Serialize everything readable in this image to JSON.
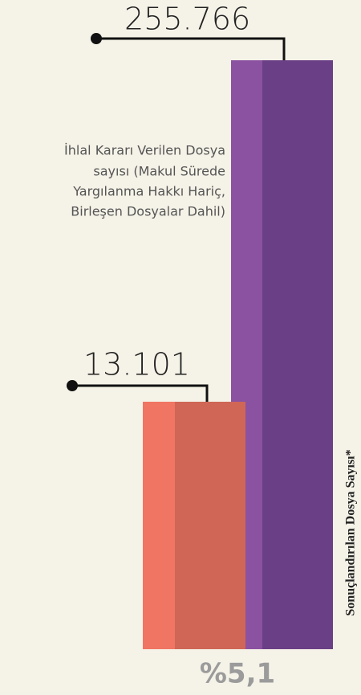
{
  "total": {
    "value": "255.766",
    "description": [
      "İhlal Kararı Verilen Dosya",
      "sayısı (Makul Sürede",
      "Yargılanma Hakkı Hariç,",
      "Birleşen Dosyalar Dahil)"
    ]
  },
  "violations": {
    "value": "13.101"
  },
  "axis_label": "Sonuçlandırılan Dosya Sayısı*",
  "ratio": "%5,1"
}
